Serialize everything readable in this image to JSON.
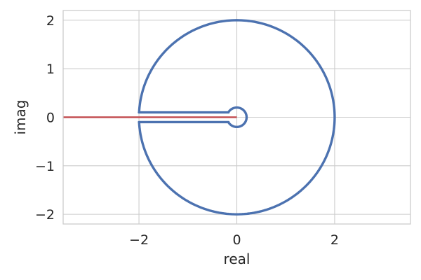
{
  "chart_data": {
    "type": "line",
    "title": "",
    "xlabel": "real",
    "ylabel": "imag",
    "xlim": [
      -3.55,
      3.55
    ],
    "ylim": [
      -2.2,
      2.2
    ],
    "xticks": [
      -2,
      0,
      2
    ],
    "xtick_labels": [
      "−2",
      "0",
      "2"
    ],
    "yticks": [
      -2,
      -1,
      0,
      1,
      2
    ],
    "ytick_labels": [
      "−2",
      "−1",
      "0",
      "1",
      "2"
    ],
    "grid": true,
    "legend": "none",
    "series": [
      {
        "kind": "keyhole-contour",
        "color": "#4c72b0",
        "outer_radius": 2,
        "inner_radius": 0.2,
        "slit_half_width": 0.1,
        "slit_x_range": [
          -2,
          -0.17
        ]
      },
      {
        "kind": "branch-cut",
        "color": "#c44e52",
        "x": [
          -3.55,
          0
        ],
        "y": [
          0,
          0
        ]
      }
    ]
  }
}
